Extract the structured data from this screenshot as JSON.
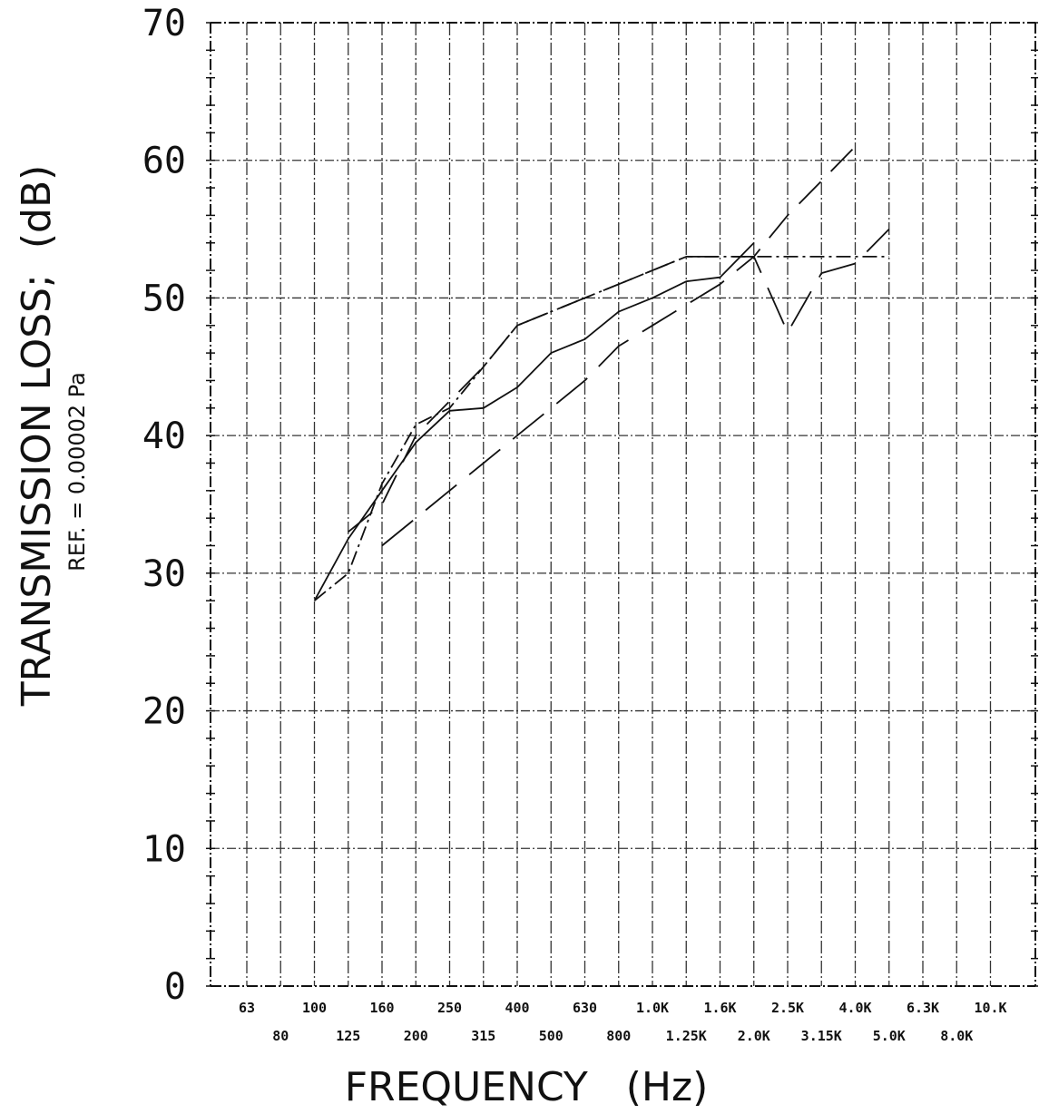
{
  "chart_data": {
    "type": "line",
    "xlabel": "FREQUENCY   (Hz)",
    "ylabel": "TRANSMISSION LOSS;  (dB)",
    "ylabel_sub": "REF. = 0.00002 Pa",
    "ylim": [
      0,
      70
    ],
    "yticks": [
      0,
      10,
      20,
      30,
      40,
      50,
      60,
      70
    ],
    "x_scale": "log (one-third-octave bands)",
    "grid": true,
    "xticks_top_row": [
      "63",
      "100",
      "160",
      "250",
      "400",
      "630",
      "1.0K",
      "1.6K",
      "2.5K",
      "4.0K",
      "6.3K",
      "10.K"
    ],
    "xticks_bottom_row": [
      "80",
      "125",
      "200",
      "315",
      "500",
      "800",
      "1.25K",
      "2.0K",
      "3.15K",
      "5.0K",
      "8.0K"
    ],
    "bands": [
      "63",
      "80",
      "100",
      "125",
      "160",
      "200",
      "250",
      "315",
      "400",
      "500",
      "630",
      "800",
      "1.0K",
      "1.25K",
      "1.6K",
      "2.0K",
      "2.5K",
      "3.15K",
      "4.0K",
      "5.0K",
      "6.3K",
      "8.0K",
      "10.K"
    ],
    "series": [
      {
        "style": "solid",
        "x": [
          "100",
          "125",
          "160",
          "200",
          "250",
          "315",
          "400",
          "500",
          "630",
          "800",
          "1.0K",
          "1.25K",
          "1.6K",
          "2.0K"
        ],
        "values": [
          28,
          32.5,
          36,
          39.5,
          41.8,
          42,
          43.5,
          46,
          47,
          49,
          50,
          51.2,
          51.5,
          54
        ]
      },
      {
        "style": "dash-dot",
        "x": [
          "100",
          "125",
          "160",
          "200",
          "250",
          "315",
          "400",
          "500",
          "630",
          "800",
          "1.0K",
          "1.25K",
          "1.6K",
          "2.0K",
          "2.5K",
          "3.15K",
          "4.0K",
          "5.0K"
        ],
        "values": [
          28,
          30,
          36.5,
          40.8,
          42,
          45,
          48,
          49,
          50,
          51,
          52,
          53,
          53,
          53,
          53,
          53,
          53,
          53
        ]
      },
      {
        "style": "long-dash",
        "x": [
          "125",
          "160",
          "200",
          "250",
          "315",
          "400",
          "500",
          "630",
          "800",
          "1.0K",
          "1.25K",
          "1.6K",
          "2.0K",
          "2.5K",
          "3.15K",
          "4.0K"
        ],
        "values": [
          33,
          35,
          40,
          42.5,
          45,
          48,
          49,
          50,
          51,
          52,
          53,
          53,
          53,
          56,
          58.5,
          61
        ]
      },
      {
        "style": "dashed",
        "x": [
          "160",
          "200",
          "250",
          "315",
          "400",
          "500",
          "630",
          "800",
          "1.0K",
          "1.25K",
          "1.6K",
          "2.0K",
          "2.5K",
          "3.15K",
          "4.0K",
          "5.0K"
        ],
        "values": [
          32,
          34,
          36,
          38,
          40,
          42,
          44,
          46.5,
          48,
          49.5,
          51,
          53,
          47.5,
          51.8,
          52.5,
          55
        ]
      }
    ]
  }
}
